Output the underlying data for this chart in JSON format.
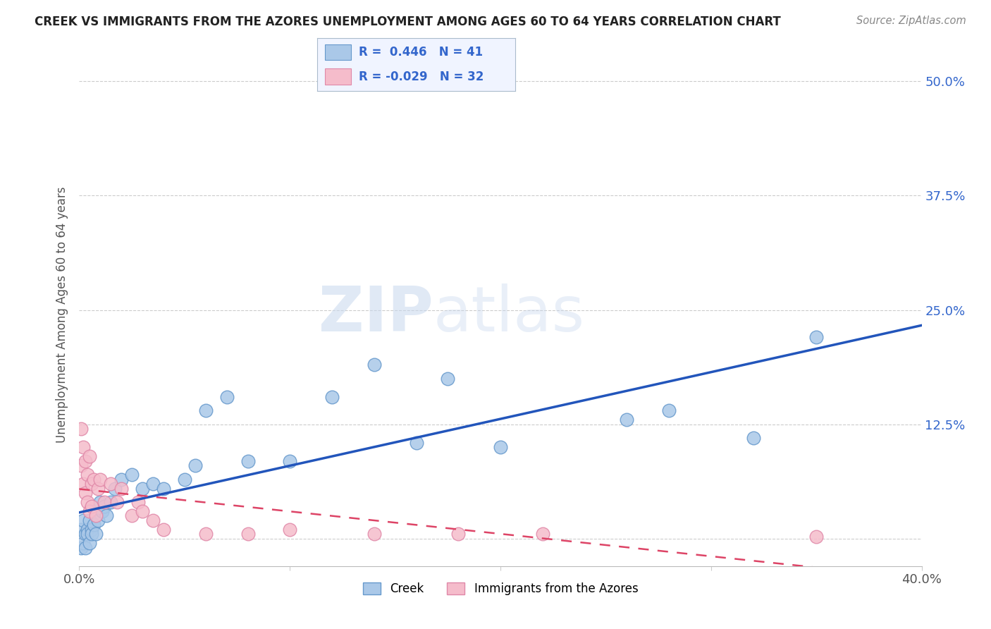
{
  "title": "CREEK VS IMMIGRANTS FROM THE AZORES UNEMPLOYMENT AMONG AGES 60 TO 64 YEARS CORRELATION CHART",
  "source": "Source: ZipAtlas.com",
  "ylabel": "Unemployment Among Ages 60 to 64 years",
  "xlim": [
    0.0,
    0.4
  ],
  "ylim": [
    -0.03,
    0.52
  ],
  "x_ticks": [
    0.0,
    0.1,
    0.2,
    0.3,
    0.4
  ],
  "x_tick_labels": [
    "0.0%",
    "",
    "",
    "",
    "40.0%"
  ],
  "y_ticks": [
    0.0,
    0.125,
    0.25,
    0.375,
    0.5
  ],
  "y_tick_labels": [
    "",
    "12.5%",
    "25.0%",
    "37.5%",
    "50.0%"
  ],
  "grid_color": "#cccccc",
  "background_color": "#ffffff",
  "watermark": "ZIPatlas",
  "legend_R1": "0.446",
  "legend_N1": "41",
  "legend_R2": "-0.029",
  "legend_N2": "32",
  "creek_color": "#aac8e8",
  "creek_edge": "#6699cc",
  "azores_color": "#f5bccb",
  "azores_edge": "#e088a8",
  "creek_line_color": "#2255bb",
  "azores_line_color": "#dd4466",
  "creek_scatter_x": [
    0.001,
    0.001,
    0.002,
    0.002,
    0.003,
    0.003,
    0.004,
    0.004,
    0.005,
    0.005,
    0.006,
    0.006,
    0.007,
    0.008,
    0.009,
    0.01,
    0.011,
    0.012,
    0.013,
    0.015,
    0.017,
    0.02,
    0.025,
    0.03,
    0.035,
    0.04,
    0.05,
    0.055,
    0.06,
    0.07,
    0.08,
    0.1,
    0.12,
    0.14,
    0.16,
    0.175,
    0.2,
    0.26,
    0.28,
    0.32,
    0.35
  ],
  "creek_scatter_y": [
    0.01,
    -0.01,
    0.02,
    -0.005,
    0.005,
    -0.01,
    0.01,
    0.005,
    0.02,
    -0.005,
    0.01,
    0.005,
    0.015,
    0.005,
    0.02,
    0.04,
    0.03,
    0.035,
    0.025,
    0.04,
    0.055,
    0.065,
    0.07,
    0.055,
    0.06,
    0.055,
    0.065,
    0.08,
    0.14,
    0.155,
    0.085,
    0.085,
    0.155,
    0.19,
    0.105,
    0.175,
    0.1,
    0.13,
    0.14,
    0.11,
    0.22
  ],
  "azores_scatter_x": [
    0.001,
    0.001,
    0.002,
    0.002,
    0.003,
    0.003,
    0.004,
    0.004,
    0.005,
    0.005,
    0.006,
    0.006,
    0.007,
    0.008,
    0.009,
    0.01,
    0.012,
    0.015,
    0.018,
    0.02,
    0.025,
    0.028,
    0.03,
    0.035,
    0.04,
    0.06,
    0.08,
    0.1,
    0.14,
    0.18,
    0.22,
    0.35
  ],
  "azores_scatter_y": [
    0.12,
    0.08,
    0.1,
    0.06,
    0.085,
    0.05,
    0.07,
    0.04,
    0.09,
    0.03,
    0.06,
    0.035,
    0.065,
    0.025,
    0.055,
    0.065,
    0.04,
    0.06,
    0.04,
    0.055,
    0.025,
    0.04,
    0.03,
    0.02,
    0.01,
    0.005,
    0.005,
    0.01,
    0.005,
    0.005,
    0.005,
    0.002
  ],
  "legend_box_color": "#f0f4ff",
  "legend_border_color": "#aabbcc"
}
